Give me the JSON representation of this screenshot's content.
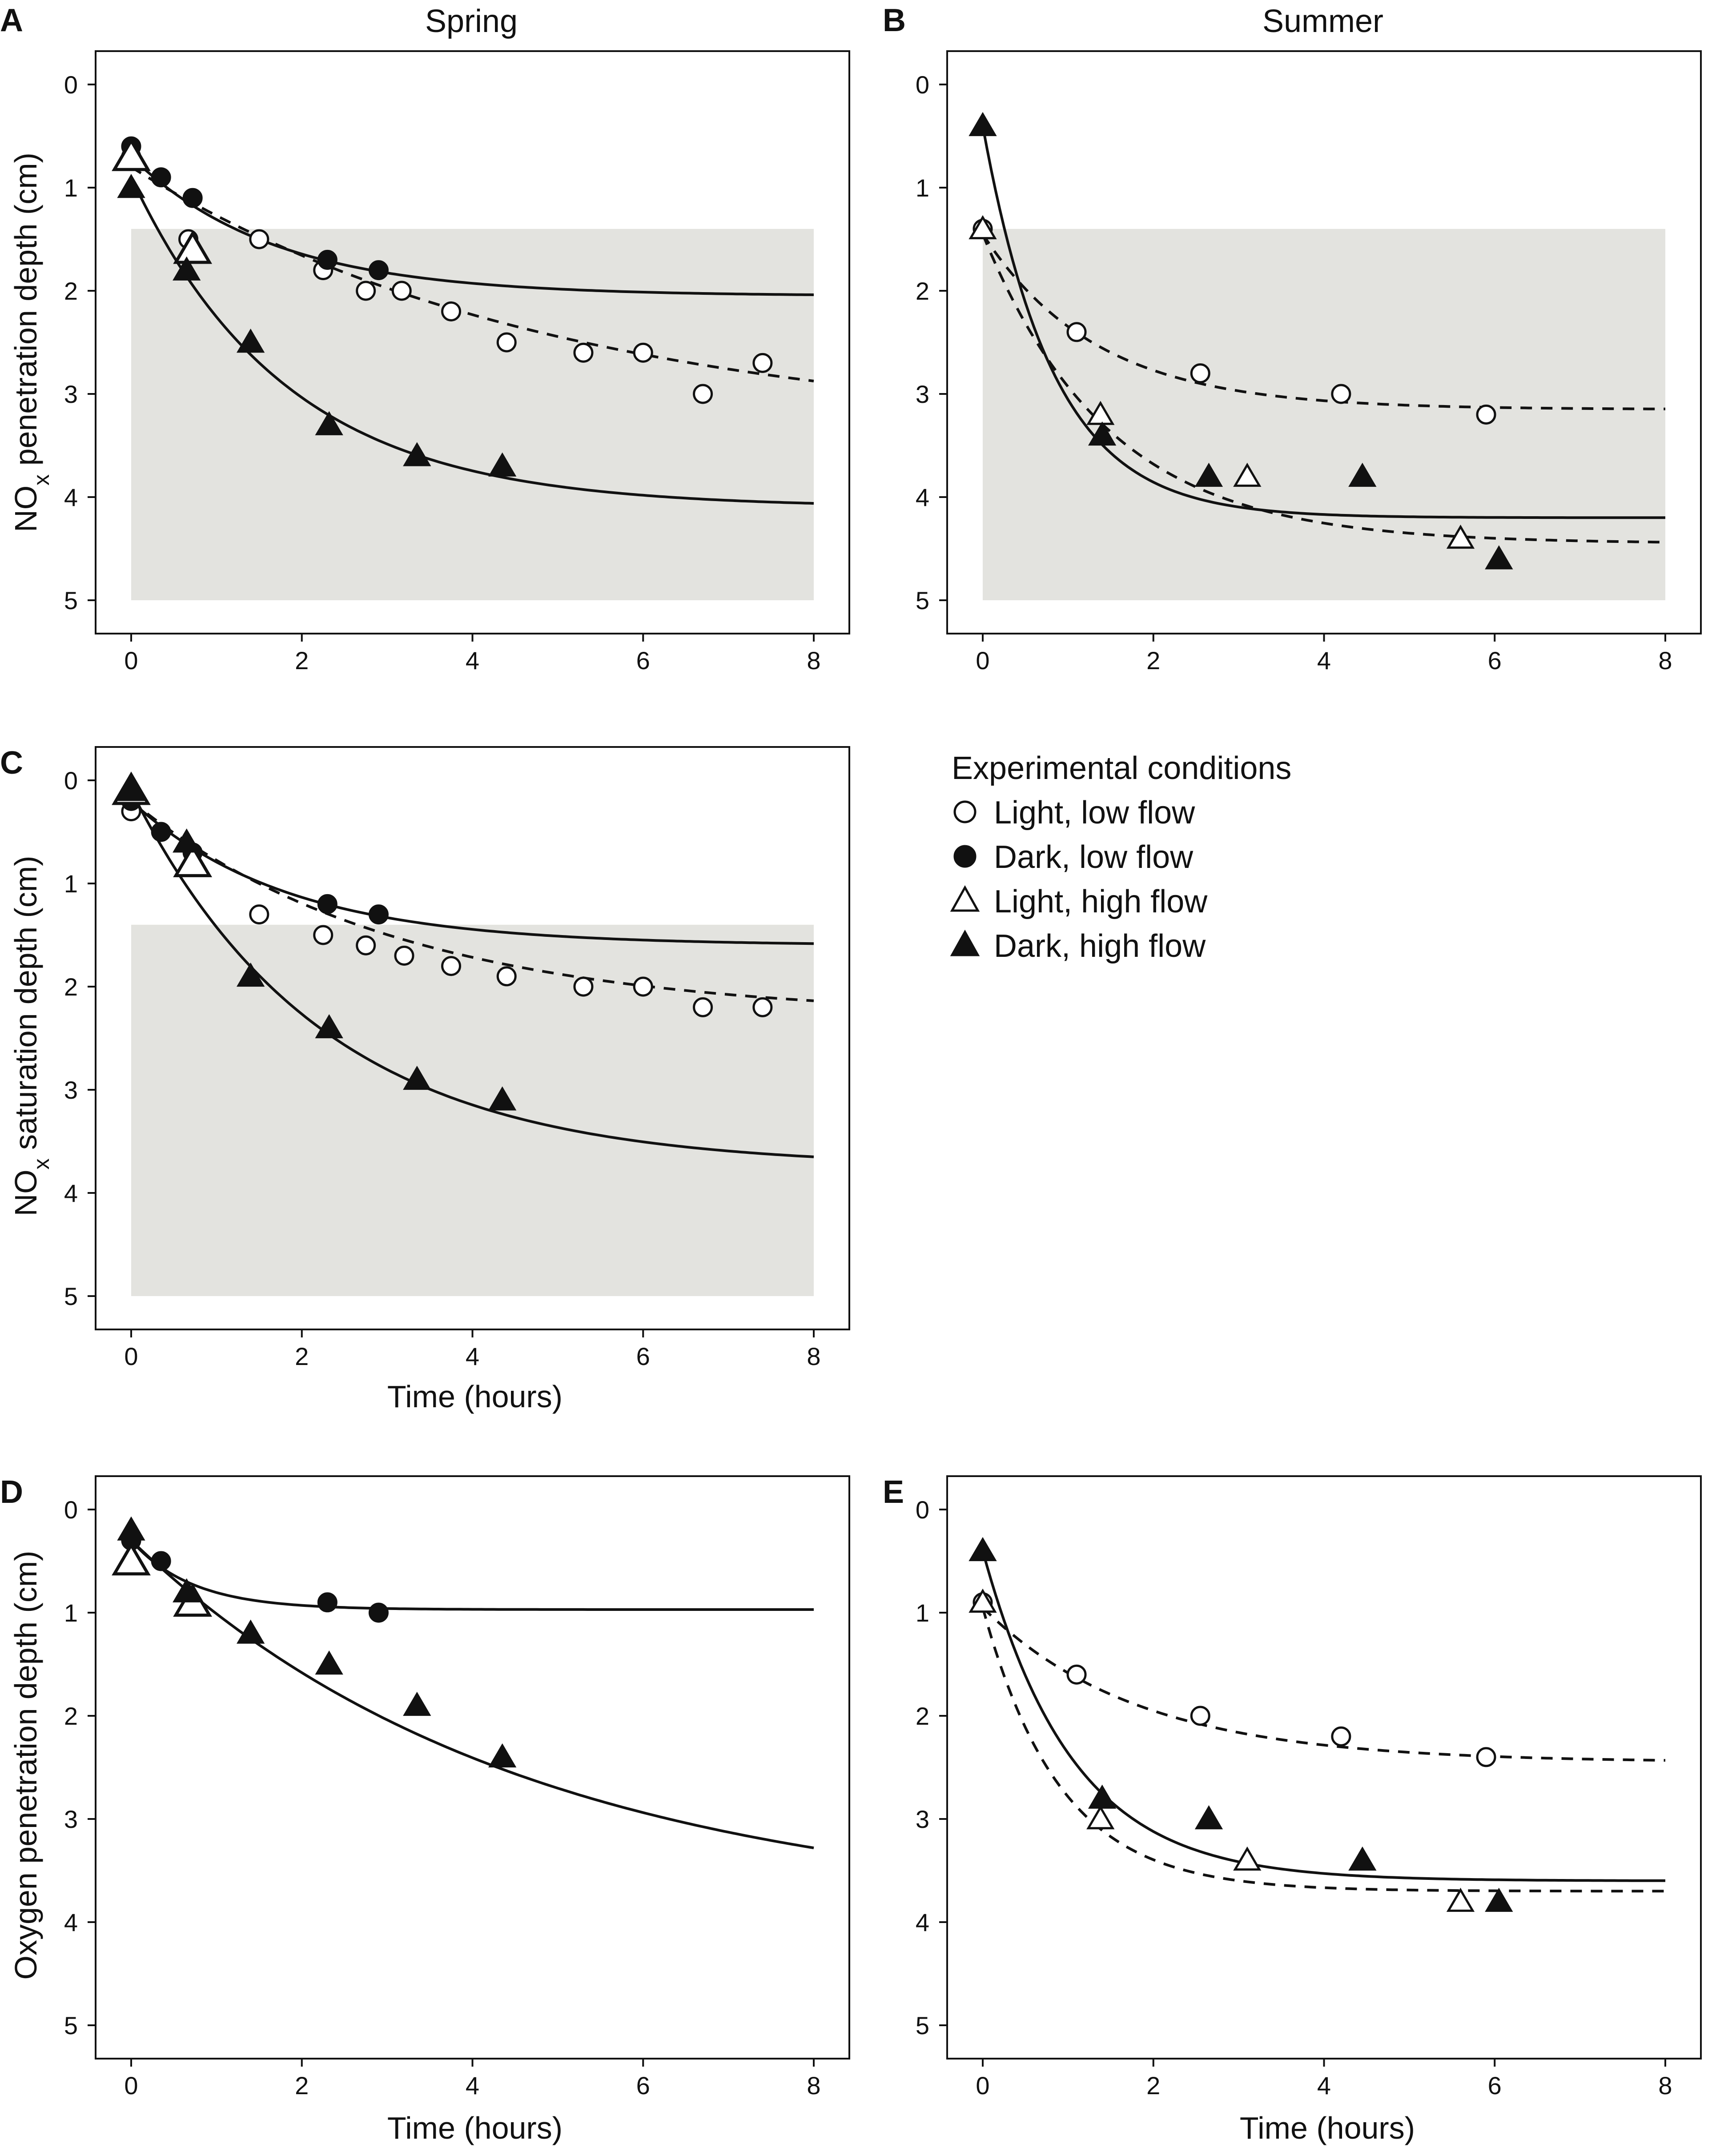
{
  "figure": {
    "seasons": [
      "Spring",
      "Summer"
    ],
    "legend": {
      "title": "Experimental conditions",
      "entries": [
        {
          "key": "light_low",
          "label": "Light, low flow"
        },
        {
          "key": "dark_low",
          "label": "Dark, low flow"
        },
        {
          "key": "light_high",
          "label": "Light, high flow"
        },
        {
          "key": "dark_high",
          "label": "Dark, high flow"
        }
      ]
    },
    "colors": {
      "shade": "#e3e3df",
      "ink": "#111111",
      "open_fill": "#ffffff"
    }
  },
  "chart_data": [
    {
      "panel": "A",
      "type": "scatter",
      "title": "Spring",
      "ylabel_main": "NO",
      "ylabel_sub": "x",
      "ylabel_rest": " penetration depth (cm)",
      "xlabel": "",
      "xlim": [
        0,
        8
      ],
      "ylim": [
        0,
        5
      ],
      "y_inverted": true,
      "xticks": [
        "0",
        "2",
        "4",
        "6",
        "8"
      ],
      "yticks": [
        "0",
        "1",
        "2",
        "3",
        "4",
        "5"
      ],
      "shaded_band": {
        "x": [
          0,
          8
        ],
        "y": [
          1.4,
          5
        ]
      },
      "series": [
        {
          "key": "light_low",
          "name": "Light, low flow",
          "points": [
            [
              0,
              0.7
            ],
            [
              0.67,
              1.5
            ],
            [
              1.5,
              1.5
            ],
            [
              2.25,
              1.8
            ],
            [
              2.75,
              2.0
            ],
            [
              3.17,
              2.0
            ],
            [
              3.75,
              2.2
            ],
            [
              4.4,
              2.5
            ],
            [
              5.3,
              2.6
            ],
            [
              6.0,
              2.6
            ],
            [
              6.7,
              3.0
            ],
            [
              7.4,
              2.7
            ]
          ],
          "fit": {
            "y0": 0.8,
            "yinf": 3.4,
            "k": 0.2,
            "dashed": true
          }
        },
        {
          "key": "dark_low",
          "name": "Dark, low flow",
          "points": [
            [
              0,
              0.6
            ],
            [
              0.35,
              0.9
            ],
            [
              0.72,
              1.1
            ],
            [
              2.3,
              1.7
            ],
            [
              2.9,
              1.8
            ]
          ],
          "fit": {
            "y0": 0.7,
            "yinf": 2.05,
            "k": 0.6,
            "dashed": false
          }
        },
        {
          "key": "light_high",
          "name": "Light, high flow",
          "points": [
            [
              0,
              0.7
            ],
            [
              0.72,
              1.6
            ]
          ],
          "fit": null
        },
        {
          "key": "dark_high",
          "name": "Dark, high flow",
          "points": [
            [
              0,
              1.0
            ],
            [
              0.65,
              1.8
            ],
            [
              1.4,
              2.5
            ],
            [
              2.32,
              3.3
            ],
            [
              3.35,
              3.6
            ],
            [
              4.35,
              3.7
            ]
          ],
          "fit": {
            "y0": 0.9,
            "yinf": 4.1,
            "k": 0.55,
            "dashed": false
          }
        }
      ]
    },
    {
      "panel": "B",
      "type": "scatter",
      "title": "Summer",
      "ylabel_main": "",
      "ylabel_sub": "",
      "ylabel_rest": "",
      "xlabel": "",
      "xlim": [
        0,
        8
      ],
      "ylim": [
        0,
        5
      ],
      "y_inverted": true,
      "xticks": [
        "0",
        "2",
        "4",
        "6",
        "8"
      ],
      "yticks": [
        "0",
        "1",
        "2",
        "3",
        "4",
        "5"
      ],
      "shaded_band": {
        "x": [
          0,
          8
        ],
        "y": [
          1.4,
          5
        ]
      },
      "series": [
        {
          "key": "light_low",
          "name": "Light, low flow",
          "points": [
            [
              0,
              1.4
            ],
            [
              1.1,
              2.4
            ],
            [
              2.55,
              2.8
            ],
            [
              4.2,
              3.0
            ],
            [
              5.9,
              3.2
            ]
          ],
          "fit": {
            "y0": 1.45,
            "yinf": 3.15,
            "k": 0.75,
            "dashed": true
          }
        },
        {
          "key": "dark_low",
          "name": "Dark, low flow",
          "points": [],
          "fit": null
        },
        {
          "key": "light_high",
          "name": "Light, high flow",
          "points": [
            [
              0,
              1.4
            ],
            [
              1.38,
              3.2
            ],
            [
              3.1,
              3.8
            ],
            [
              5.6,
              4.4
            ]
          ],
          "fit": {
            "y0": 1.45,
            "yinf": 4.45,
            "k": 0.68,
            "dashed": true
          }
        },
        {
          "key": "dark_high",
          "name": "Dark, high flow",
          "points": [
            [
              0,
              0.4
            ],
            [
              1.4,
              3.4
            ],
            [
              2.65,
              3.8
            ],
            [
              4.45,
              3.8
            ],
            [
              6.05,
              4.6
            ]
          ],
          "fit": {
            "y0": 0.4,
            "yinf": 4.2,
            "k": 1.2,
            "dashed": false
          }
        }
      ]
    },
    {
      "panel": "C",
      "type": "scatter",
      "title": "",
      "ylabel_main": "NO",
      "ylabel_sub": "x",
      "ylabel_rest": " saturation depth (cm)",
      "xlabel": "Time (hours)",
      "xlim": [
        0,
        8
      ],
      "ylim": [
        0,
        5
      ],
      "y_inverted": true,
      "xticks": [
        "0",
        "2",
        "4",
        "6",
        "8"
      ],
      "yticks": [
        "0",
        "1",
        "2",
        "3",
        "4",
        "5"
      ],
      "shaded_band": {
        "x": [
          0,
          8
        ],
        "y": [
          1.4,
          5
        ]
      },
      "series": [
        {
          "key": "light_low",
          "name": "Light, low flow",
          "points": [
            [
              0,
              0.3
            ],
            [
              1.5,
              1.3
            ],
            [
              2.25,
              1.5
            ],
            [
              2.75,
              1.6
            ],
            [
              3.2,
              1.7
            ],
            [
              3.75,
              1.8
            ],
            [
              4.4,
              1.9
            ],
            [
              5.3,
              2.0
            ],
            [
              6.0,
              2.0
            ],
            [
              6.7,
              2.2
            ],
            [
              7.4,
              2.2
            ]
          ],
          "fit": {
            "y0": 0.2,
            "yinf": 2.3,
            "k": 0.32,
            "dashed": true
          }
        },
        {
          "key": "dark_low",
          "name": "Dark, low flow",
          "points": [
            [
              0,
              0.2
            ],
            [
              0.35,
              0.5
            ],
            [
              0.72,
              0.7
            ],
            [
              2.3,
              1.2
            ],
            [
              2.9,
              1.3
            ]
          ],
          "fit": {
            "y0": 0.2,
            "yinf": 1.6,
            "k": 0.55,
            "dashed": false
          }
        },
        {
          "key": "light_high",
          "name": "Light, high flow",
          "points": [
            [
              0,
              0.1
            ],
            [
              0.72,
              0.8
            ]
          ],
          "fit": null
        },
        {
          "key": "dark_high",
          "name": "Dark, high flow",
          "points": [
            [
              0,
              0.1
            ],
            [
              0.65,
              0.6
            ],
            [
              1.4,
              1.9
            ],
            [
              2.32,
              2.4
            ],
            [
              3.35,
              2.9
            ],
            [
              4.35,
              3.1
            ]
          ],
          "fit": {
            "y0": 0.1,
            "yinf": 3.75,
            "k": 0.45,
            "dashed": false
          }
        }
      ]
    },
    {
      "panel": "D",
      "type": "scatter",
      "title": "",
      "ylabel_main": "Oxygen penetration depth (cm)",
      "ylabel_sub": "",
      "ylabel_rest": "",
      "xlabel": "Time (hours)",
      "xlim": [
        0,
        8
      ],
      "ylim": [
        0,
        5
      ],
      "y_inverted": true,
      "xticks": [
        "0",
        "2",
        "4",
        "6",
        "8"
      ],
      "yticks": [
        "0",
        "1",
        "2",
        "3",
        "4",
        "5"
      ],
      "shaded_band": null,
      "series": [
        {
          "key": "light_low",
          "name": "Light, low flow",
          "points": [],
          "fit": null
        },
        {
          "key": "dark_low",
          "name": "Dark, low flow",
          "points": [
            [
              0,
              0.3
            ],
            [
              0.35,
              0.5
            ],
            [
              2.3,
              0.9
            ],
            [
              2.9,
              1.0
            ]
          ],
          "fit": {
            "y0": 0.3,
            "yinf": 0.97,
            "k": 1.4,
            "dashed": false
          }
        },
        {
          "key": "light_high",
          "name": "Light, high flow",
          "points": [
            [
              0,
              0.5
            ],
            [
              0.72,
              0.9
            ]
          ],
          "fit": null
        },
        {
          "key": "dark_high",
          "name": "Dark, high flow",
          "points": [
            [
              0,
              0.2
            ],
            [
              0.65,
              0.8
            ],
            [
              1.4,
              1.2
            ],
            [
              2.32,
              1.5
            ],
            [
              3.35,
              1.9
            ],
            [
              4.35,
              2.4
            ]
          ],
          "fit": {
            "y0": 0.3,
            "yinf": 3.9,
            "k": 0.22,
            "dashed": false
          }
        }
      ]
    },
    {
      "panel": "E",
      "type": "scatter",
      "title": "",
      "ylabel_main": "",
      "ylabel_sub": "",
      "ylabel_rest": "",
      "xlabel": "Time (hours)",
      "xlim": [
        0,
        8
      ],
      "ylim": [
        0,
        5
      ],
      "y_inverted": true,
      "xticks": [
        "0",
        "2",
        "4",
        "6",
        "8"
      ],
      "yticks": [
        "0",
        "1",
        "2",
        "3",
        "4",
        "5"
      ],
      "shaded_band": null,
      "series": [
        {
          "key": "light_low",
          "name": "Light, low flow",
          "points": [
            [
              0,
              0.9
            ],
            [
              1.1,
              1.6
            ],
            [
              2.55,
              2.0
            ],
            [
              4.2,
              2.2
            ],
            [
              5.9,
              2.4
            ]
          ],
          "fit": {
            "y0": 0.95,
            "yinf": 2.45,
            "k": 0.55,
            "dashed": true
          }
        },
        {
          "key": "dark_low",
          "name": "Dark, low flow",
          "points": [],
          "fit": null
        },
        {
          "key": "light_high",
          "name": "Light, high flow",
          "points": [
            [
              0,
              0.9
            ],
            [
              1.38,
              3.0
            ],
            [
              3.1,
              3.4
            ],
            [
              5.6,
              3.8
            ]
          ],
          "fit": {
            "y0": 0.95,
            "yinf": 3.7,
            "k": 1.1,
            "dashed": true
          }
        },
        {
          "key": "dark_high",
          "name": "Dark, high flow",
          "points": [
            [
              0,
              0.4
            ],
            [
              1.4,
              2.8
            ],
            [
              2.65,
              3.0
            ],
            [
              4.45,
              3.4
            ],
            [
              6.05,
              3.8
            ]
          ],
          "fit": {
            "y0": 0.4,
            "yinf": 3.6,
            "k": 0.95,
            "dashed": false
          }
        }
      ]
    }
  ]
}
